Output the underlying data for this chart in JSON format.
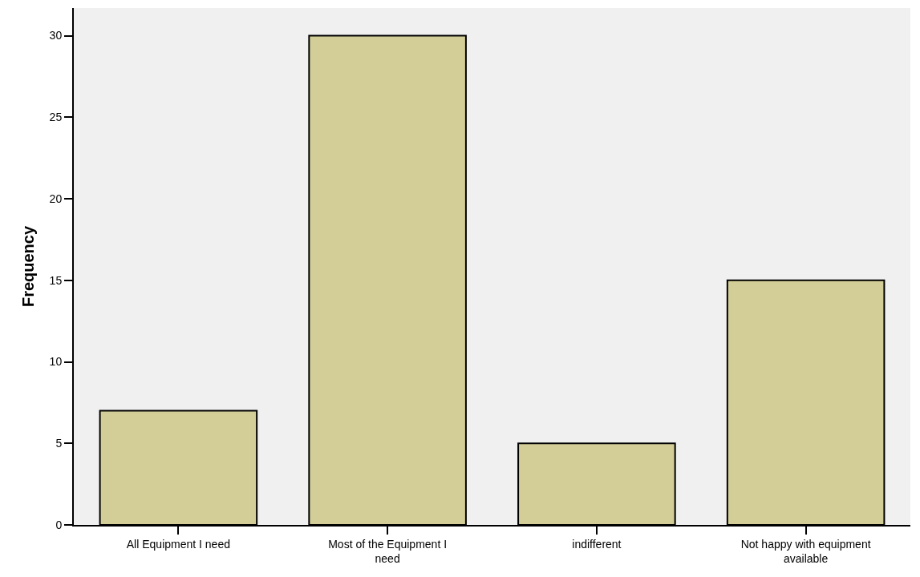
{
  "chart_data": {
    "type": "bar",
    "ylabel": "Frequency",
    "categories": [
      "All Equipment I need",
      "Most of the Equipment I need",
      "indifferent",
      "Not happy with equipment available"
    ],
    "values": [
      7,
      30,
      5,
      15
    ],
    "color": "#d3ce97",
    "ylim": [
      0,
      31.7
    ],
    "yticks": [
      0,
      5,
      10,
      15,
      20,
      25,
      30
    ],
    "grid": false
  }
}
